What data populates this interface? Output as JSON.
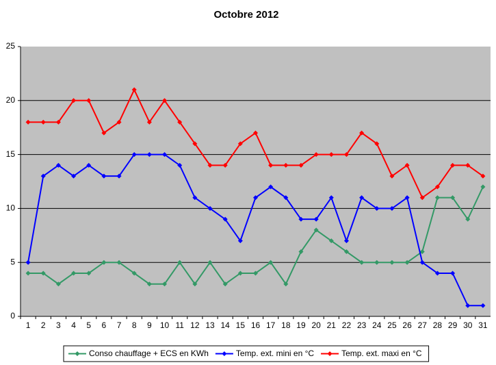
{
  "chart_data": {
    "type": "line",
    "title": "Octobre 2012",
    "categories": [
      "1",
      "2",
      "3",
      "4",
      "5",
      "6",
      "7",
      "8",
      "9",
      "10",
      "11",
      "12",
      "13",
      "14",
      "15",
      "16",
      "17",
      "18",
      "19",
      "20",
      "21",
      "22",
      "23",
      "24",
      "25",
      "26",
      "27",
      "28",
      "29",
      "30",
      "31"
    ],
    "series": [
      {
        "name": "Conso chauffage + ECS en KWh",
        "color": "#339966",
        "values": [
          4,
          4,
          3,
          4,
          4,
          5,
          5,
          4,
          3,
          3,
          5,
          3,
          5,
          3,
          4,
          4,
          5,
          3,
          6,
          8,
          7,
          6,
          5,
          5,
          5,
          5,
          6,
          11,
          11,
          9,
          12
        ]
      },
      {
        "name": "Temp. ext. mini en °C",
        "color": "#0000ff",
        "values": [
          5,
          13,
          14,
          13,
          14,
          13,
          13,
          15,
          15,
          15,
          14,
          11,
          10,
          9,
          7,
          11,
          12,
          11,
          9,
          9,
          11,
          7,
          11,
          10,
          10,
          11,
          5,
          4,
          4,
          1,
          1
        ]
      },
      {
        "name": "Temp. ext. maxi en °C",
        "color": "#ff0000",
        "values": [
          18,
          18,
          18,
          20,
          20,
          17,
          18,
          21,
          18,
          20,
          18,
          16,
          14,
          14,
          16,
          17,
          14,
          14,
          14,
          15,
          15,
          15,
          17,
          16,
          13,
          14,
          11,
          12,
          14,
          14,
          13
        ]
      }
    ],
    "ylim": [
      0,
      25
    ],
    "yticks": [
      0,
      5,
      10,
      15,
      20,
      25
    ],
    "grid": true,
    "legend": "bottom"
  }
}
